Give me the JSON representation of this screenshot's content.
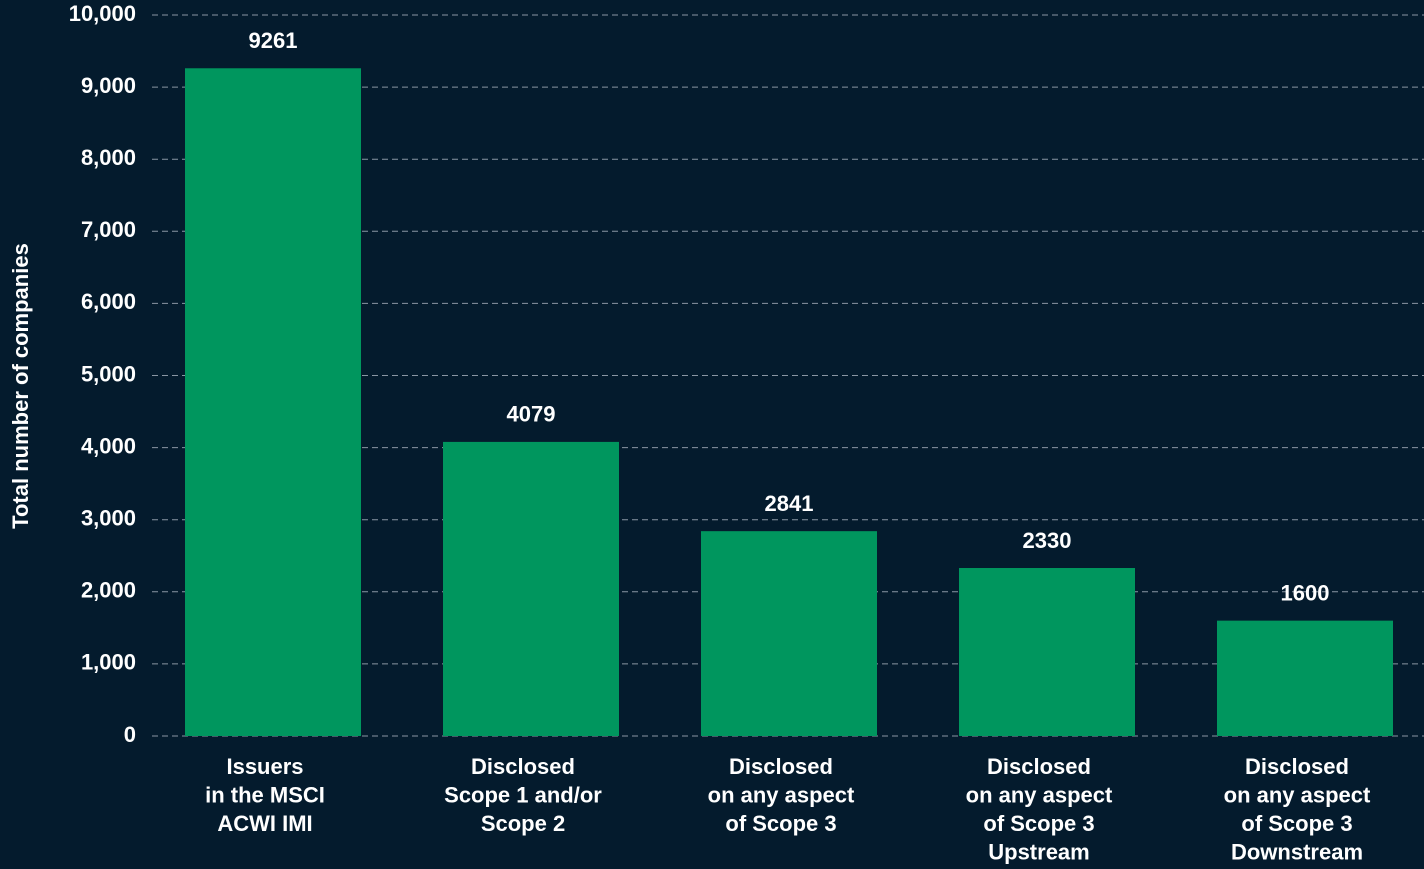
{
  "chart_data": {
    "type": "bar",
    "y_label": "Total number of companies",
    "categories": [
      [
        "Issuers",
        "in the MSCI",
        "ACWI IMI"
      ],
      [
        "Disclosed",
        "Scope 1 and/or",
        "Scope 2"
      ],
      [
        "Disclosed",
        "on any aspect",
        "of Scope 3"
      ],
      [
        "Disclosed",
        "on any aspect",
        "of Scope 3",
        "Upstream"
      ],
      [
        "Disclosed",
        "on any aspect",
        "of Scope 3",
        "Downstream"
      ]
    ],
    "values": [
      9261,
      4079,
      2841,
      2330,
      1600
    ],
    "color": "#00965e",
    "ylim": [
      0,
      10000
    ],
    "yticks": [
      0,
      {
        "value": 1000,
        "label": "1,000"
      },
      {
        "value": 2000,
        "label": "2,000"
      },
      {
        "value": 3000,
        "label": "3,000"
      },
      {
        "value": 4000,
        "label": "4,000"
      },
      {
        "value": 5000,
        "label": "5,000"
      },
      {
        "value": 6000,
        "label": "6,000"
      },
      {
        "value": 7000,
        "label": "7,000"
      },
      {
        "value": 8000,
        "label": "8,000"
      },
      {
        "value": 9000,
        "label": "9,000"
      },
      {
        "value": 10000,
        "label": "10,000"
      }
    ],
    "grid": true
  }
}
